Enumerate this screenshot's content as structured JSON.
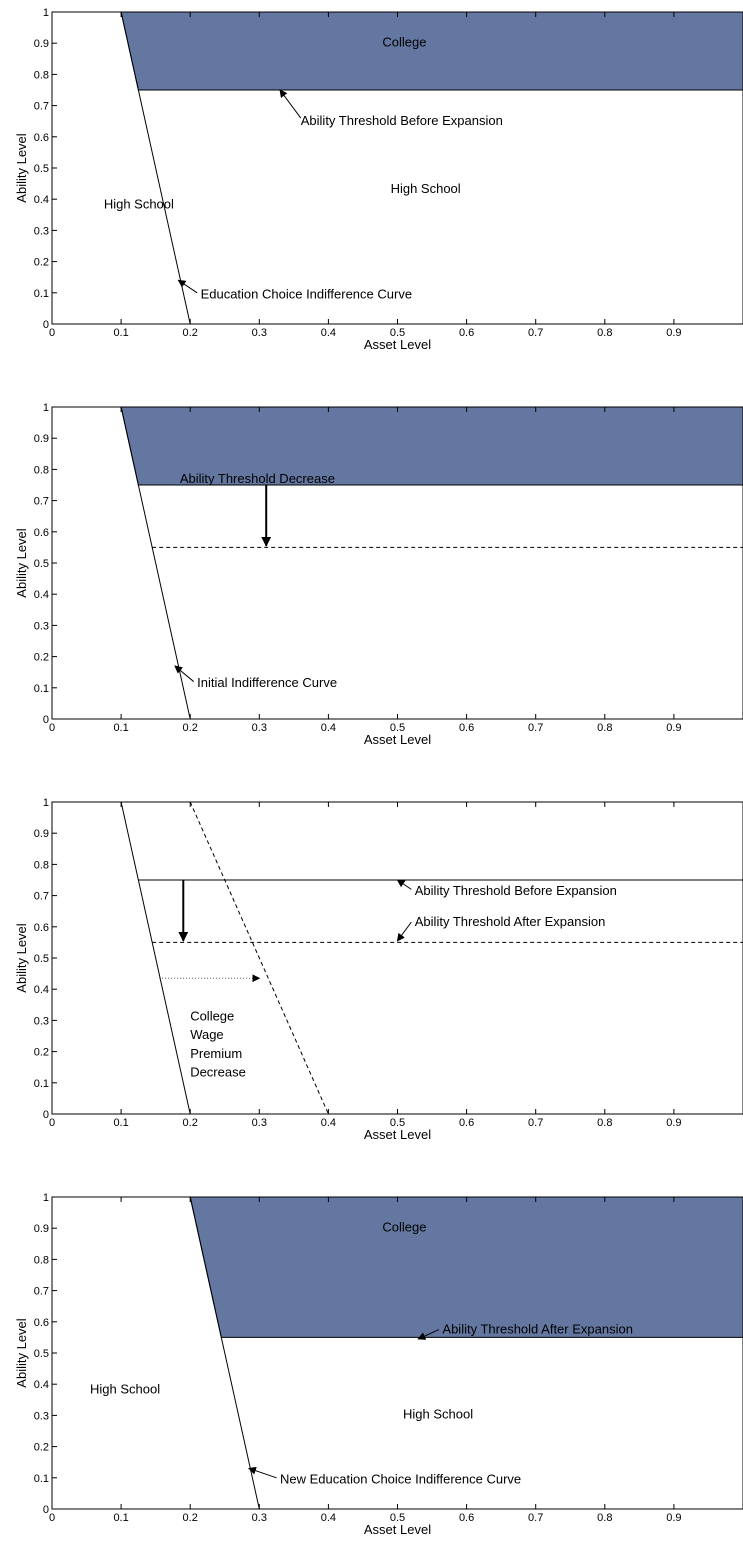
{
  "colors": {
    "college_fill": "#6477A0",
    "line": "#000000",
    "background": "#FFFFFF"
  },
  "chart_data": [
    {
      "type": "area",
      "xlabel": "Asset Level",
      "ylabel": "Ability Level",
      "xlim": [
        0,
        1
      ],
      "ylim": [
        0,
        1
      ],
      "xticks": [
        0,
        0.1,
        0.2,
        0.3,
        0.4,
        0.5,
        0.6,
        0.7,
        0.8,
        0.9
      ],
      "yticks": [
        0,
        0.1,
        0.2,
        0.3,
        0.4,
        0.5,
        0.6,
        0.7,
        0.8,
        0.9,
        1
      ],
      "xtick_labels": [
        "0",
        "0.1",
        "0.2",
        "0.3",
        "0.4",
        "0.5",
        "0.6",
        "0.7",
        "0.8",
        "0.9"
      ],
      "ytick_labels": [
        "0",
        "0.1",
        "0.2",
        "0.3",
        "0.4",
        "0.5",
        "0.6",
        "0.7",
        "0.8",
        "0.9",
        "1"
      ],
      "regions": [
        {
          "label": "College",
          "threshold_y": 0.75,
          "top_y": 1,
          "left_boundary": [
            [
              0.1,
              1
            ],
            [
              0.2,
              0
            ]
          ],
          "label_xy": [
            0.51,
            0.89
          ]
        }
      ],
      "lines": [
        {
          "name": "indifference",
          "points": [
            [
              0.1,
              1
            ],
            [
              0.2,
              0
            ]
          ],
          "style": "solid"
        }
      ],
      "labels": [
        {
          "text": "High School",
          "xy": [
            0.075,
            0.37
          ]
        },
        {
          "text": "High School",
          "xy": [
            0.49,
            0.42
          ]
        }
      ],
      "annotations": [
        {
          "text": "Ability Threshold Before Expansion",
          "text_xy": [
            0.36,
            0.65
          ],
          "arrow_from": [
            0.36,
            0.66
          ],
          "arrow_to": [
            0.33,
            0.75
          ]
        },
        {
          "text": "Education Choice Indifference Curve",
          "text_xy": [
            0.215,
            0.095
          ],
          "arrow_from": [
            0.21,
            0.1
          ],
          "arrow_to": [
            0.183,
            0.14
          ]
        }
      ]
    },
    {
      "type": "area",
      "xlabel": "Asset Level",
      "ylabel": "Ability Level",
      "xlim": [
        0,
        1
      ],
      "ylim": [
        0,
        1
      ],
      "xticks": [
        0,
        0.1,
        0.2,
        0.3,
        0.4,
        0.5,
        0.6,
        0.7,
        0.8,
        0.9
      ],
      "yticks": [
        0,
        0.1,
        0.2,
        0.3,
        0.4,
        0.5,
        0.6,
        0.7,
        0.8,
        0.9,
        1
      ],
      "xtick_labels": [
        "0",
        "0.1",
        "0.2",
        "0.3",
        "0.4",
        "0.5",
        "0.6",
        "0.7",
        "0.8",
        "0.9"
      ],
      "ytick_labels": [
        "0",
        "0.1",
        "0.2",
        "0.3",
        "0.4",
        "0.5",
        "0.6",
        "0.7",
        "0.8",
        "0.9",
        "1"
      ],
      "regions": [
        {
          "label": "",
          "threshold_y": 0.75,
          "top_y": 1,
          "left_boundary": [
            [
              0.1,
              1
            ],
            [
              0.2,
              0
            ]
          ]
        }
      ],
      "lines": [
        {
          "name": "indifference",
          "points": [
            [
              0.1,
              1
            ],
            [
              0.2,
              0
            ]
          ],
          "style": "solid"
        },
        {
          "name": "new-threshold",
          "points": [
            [
              0.145,
              0.55
            ],
            [
              1,
              0.55
            ]
          ],
          "style": "dashed"
        }
      ],
      "labels": [],
      "annotations": [
        {
          "text": "Ability Threshold Decrease",
          "text_xy": [
            0.185,
            0.77
          ],
          "arrow_from": [
            0.31,
            0.75
          ],
          "arrow_to": [
            0.31,
            0.555
          ],
          "bold_arrow": true
        },
        {
          "text": "Initial Indifference Curve",
          "text_xy": [
            0.21,
            0.115
          ],
          "arrow_from": [
            0.205,
            0.12
          ],
          "arrow_to": [
            0.178,
            0.17
          ]
        }
      ]
    },
    {
      "type": "line",
      "xlabel": "Asset Level",
      "ylabel": "Ability Level",
      "xlim": [
        0,
        1
      ],
      "ylim": [
        0,
        1
      ],
      "xticks": [
        0,
        0.1,
        0.2,
        0.3,
        0.4,
        0.5,
        0.6,
        0.7,
        0.8,
        0.9
      ],
      "yticks": [
        0,
        0.1,
        0.2,
        0.3,
        0.4,
        0.5,
        0.6,
        0.7,
        0.8,
        0.9,
        1
      ],
      "xtick_labels": [
        "0",
        "0.1",
        "0.2",
        "0.3",
        "0.4",
        "0.5",
        "0.6",
        "0.7",
        "0.8",
        "0.9"
      ],
      "ytick_labels": [
        "0",
        "0.1",
        "0.2",
        "0.3",
        "0.4",
        "0.5",
        "0.6",
        "0.7",
        "0.8",
        "0.9",
        "1"
      ],
      "regions": [],
      "lines": [
        {
          "name": "indifference",
          "points": [
            [
              0.1,
              1
            ],
            [
              0.2,
              0
            ]
          ],
          "style": "solid"
        },
        {
          "name": "new-indifference",
          "points": [
            [
              0.2,
              1
            ],
            [
              0.4,
              0
            ]
          ],
          "style": "dashed"
        },
        {
          "name": "threshold-before",
          "points": [
            [
              0.125,
              0.75
            ],
            [
              1,
              0.75
            ]
          ],
          "style": "solid"
        },
        {
          "name": "threshold-after",
          "points": [
            [
              0.145,
              0.55
            ],
            [
              1,
              0.55
            ]
          ],
          "style": "dashed"
        },
        {
          "name": "premium-shift",
          "points": [
            [
              0.155,
              0.435
            ],
            [
              0.3,
              0.435
            ]
          ],
          "style": "dotted",
          "arrow_end": true
        }
      ],
      "labels": [
        {
          "text": "College",
          "xy": [
            0.2,
            0.3
          ]
        },
        {
          "text": "Wage",
          "xy": [
            0.2,
            0.24
          ]
        },
        {
          "text": "Premium",
          "xy": [
            0.2,
            0.18
          ]
        },
        {
          "text": "Decrease",
          "xy": [
            0.2,
            0.12
          ]
        }
      ],
      "annotations": [
        {
          "text": "Ability Threshold Before Expansion",
          "text_xy": [
            0.525,
            0.715
          ],
          "arrow_from": [
            0.52,
            0.72
          ],
          "arrow_to": [
            0.5,
            0.75
          ]
        },
        {
          "text": "Ability Threshold After Expansion",
          "text_xy": [
            0.525,
            0.615
          ],
          "arrow_from": [
            0.52,
            0.615
          ],
          "arrow_to": [
            0.5,
            0.555
          ]
        },
        {
          "text": "",
          "arrow_from": [
            0.19,
            0.75
          ],
          "arrow_to": [
            0.19,
            0.555
          ],
          "bold_arrow": true
        }
      ]
    },
    {
      "type": "area",
      "xlabel": "Asset Level",
      "ylabel": "Ability Level",
      "xlim": [
        0,
        1
      ],
      "ylim": [
        0,
        1
      ],
      "xticks": [
        0,
        0.1,
        0.2,
        0.3,
        0.4,
        0.5,
        0.6,
        0.7,
        0.8,
        0.9
      ],
      "yticks": [
        0,
        0.1,
        0.2,
        0.3,
        0.4,
        0.5,
        0.6,
        0.7,
        0.8,
        0.9,
        1
      ],
      "xtick_labels": [
        "0",
        "0.1",
        "0.2",
        "0.3",
        "0.4",
        "0.5",
        "0.6",
        "0.7",
        "0.8",
        "0.9"
      ],
      "ytick_labels": [
        "0",
        "0.1",
        "0.2",
        "0.3",
        "0.4",
        "0.5",
        "0.6",
        "0.7",
        "0.8",
        "0.9",
        "1"
      ],
      "regions": [
        {
          "label": "College",
          "threshold_y": 0.55,
          "top_y": 1,
          "left_boundary": [
            [
              0.2,
              1
            ],
            [
              0.3,
              0
            ]
          ],
          "label_xy": [
            0.51,
            0.89
          ]
        }
      ],
      "lines": [
        {
          "name": "new-indifference",
          "points": [
            [
              0.2,
              1
            ],
            [
              0.3,
              0
            ]
          ],
          "style": "solid"
        }
      ],
      "labels": [
        {
          "text": "High School",
          "xy": [
            0.055,
            0.37
          ]
        },
        {
          "text": "High School",
          "xy": [
            0.508,
            0.29
          ]
        }
      ],
      "annotations": [
        {
          "text": "Ability Threshold After Expansion",
          "text_xy": [
            0.565,
            0.575
          ],
          "arrow_from": [
            0.56,
            0.575
          ],
          "arrow_to": [
            0.53,
            0.545
          ]
        },
        {
          "text": "New Education Choice Indifference Curve",
          "text_xy": [
            0.33,
            0.095
          ],
          "arrow_from": [
            0.325,
            0.1
          ],
          "arrow_to": [
            0.285,
            0.13
          ]
        }
      ]
    }
  ]
}
